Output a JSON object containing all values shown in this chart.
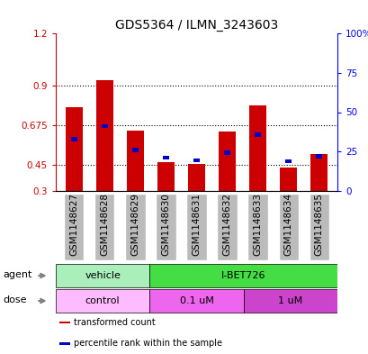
{
  "title": "GDS5364 / ILMN_3243603",
  "samples": [
    "GSM1148627",
    "GSM1148628",
    "GSM1148629",
    "GSM1148630",
    "GSM1148631",
    "GSM1148632",
    "GSM1148633",
    "GSM1148634",
    "GSM1148635"
  ],
  "red_values": [
    0.78,
    0.935,
    0.645,
    0.465,
    0.455,
    0.638,
    0.79,
    0.435,
    0.51
  ],
  "blue_values": [
    0.595,
    0.67,
    0.535,
    0.49,
    0.475,
    0.52,
    0.62,
    0.47,
    0.5
  ],
  "ylim": [
    0.3,
    1.2
  ],
  "yticks_left": [
    0.3,
    0.45,
    0.675,
    0.9,
    1.2
  ],
  "ytick_left_labels": [
    "0.3",
    "0.45",
    "0.675",
    "0.9",
    "1.2"
  ],
  "yticks_right_pct": [
    0,
    25,
    50,
    75,
    100
  ],
  "ytick_right_labels": [
    "0",
    "25",
    "50",
    "75",
    "100%"
  ],
  "hlines": [
    0.45,
    0.675,
    0.9
  ],
  "bar_width": 0.55,
  "red_color": "#cc0000",
  "blue_color": "#0000cc",
  "agent_label_color": "#555555",
  "agent_groups": [
    {
      "label": "vehicle",
      "start": 0,
      "end": 3,
      "color": "#aaeebb"
    },
    {
      "label": "I-BET726",
      "start": 3,
      "end": 9,
      "color": "#44dd44"
    }
  ],
  "dose_groups": [
    {
      "label": "control",
      "start": 0,
      "end": 3,
      "color": "#ffbbff"
    },
    {
      "label": "0.1 uM",
      "start": 3,
      "end": 6,
      "color": "#ee66ee"
    },
    {
      "label": "1 uM",
      "start": 6,
      "end": 9,
      "color": "#cc44cc"
    }
  ],
  "legend_items": [
    {
      "label": "transformed count",
      "color": "#cc0000"
    },
    {
      "label": "percentile rank within the sample",
      "color": "#0000cc"
    }
  ],
  "bg_color": "#ffffff",
  "xtick_bg_color": "#bbbbbb",
  "title_fontsize": 10,
  "tick_fontsize": 7.5,
  "label_fontsize": 7.5,
  "annot_fontsize": 8,
  "legend_fontsize": 7
}
